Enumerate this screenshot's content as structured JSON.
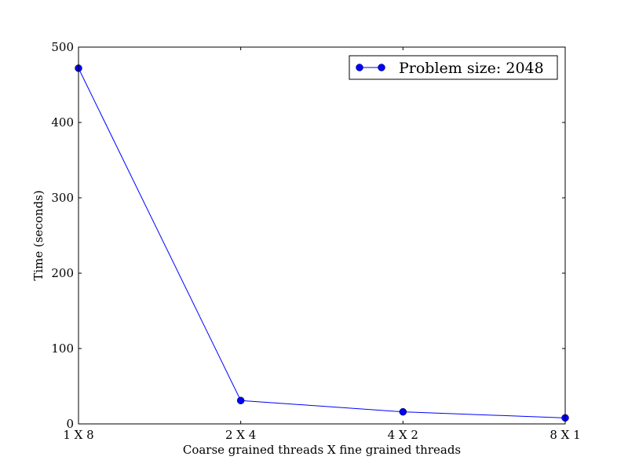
{
  "chart_data": {
    "type": "line",
    "categories": [
      "1 X 8",
      "2 X 4",
      "4 X 2",
      "8 X 1"
    ],
    "series": [
      {
        "name": "Problem size: 2048",
        "values": [
          472,
          31,
          16,
          8
        ],
        "color": "#0000ff",
        "marker": "circle"
      }
    ],
    "xlabel": "Coarse grained threads X fine grained threads",
    "ylabel": "Time (seconds)",
    "ylim": [
      0,
      500
    ],
    "yticks": [
      "0",
      "100",
      "200",
      "300",
      "400",
      "500"
    ],
    "grid": false,
    "legend_position": "top-right"
  }
}
